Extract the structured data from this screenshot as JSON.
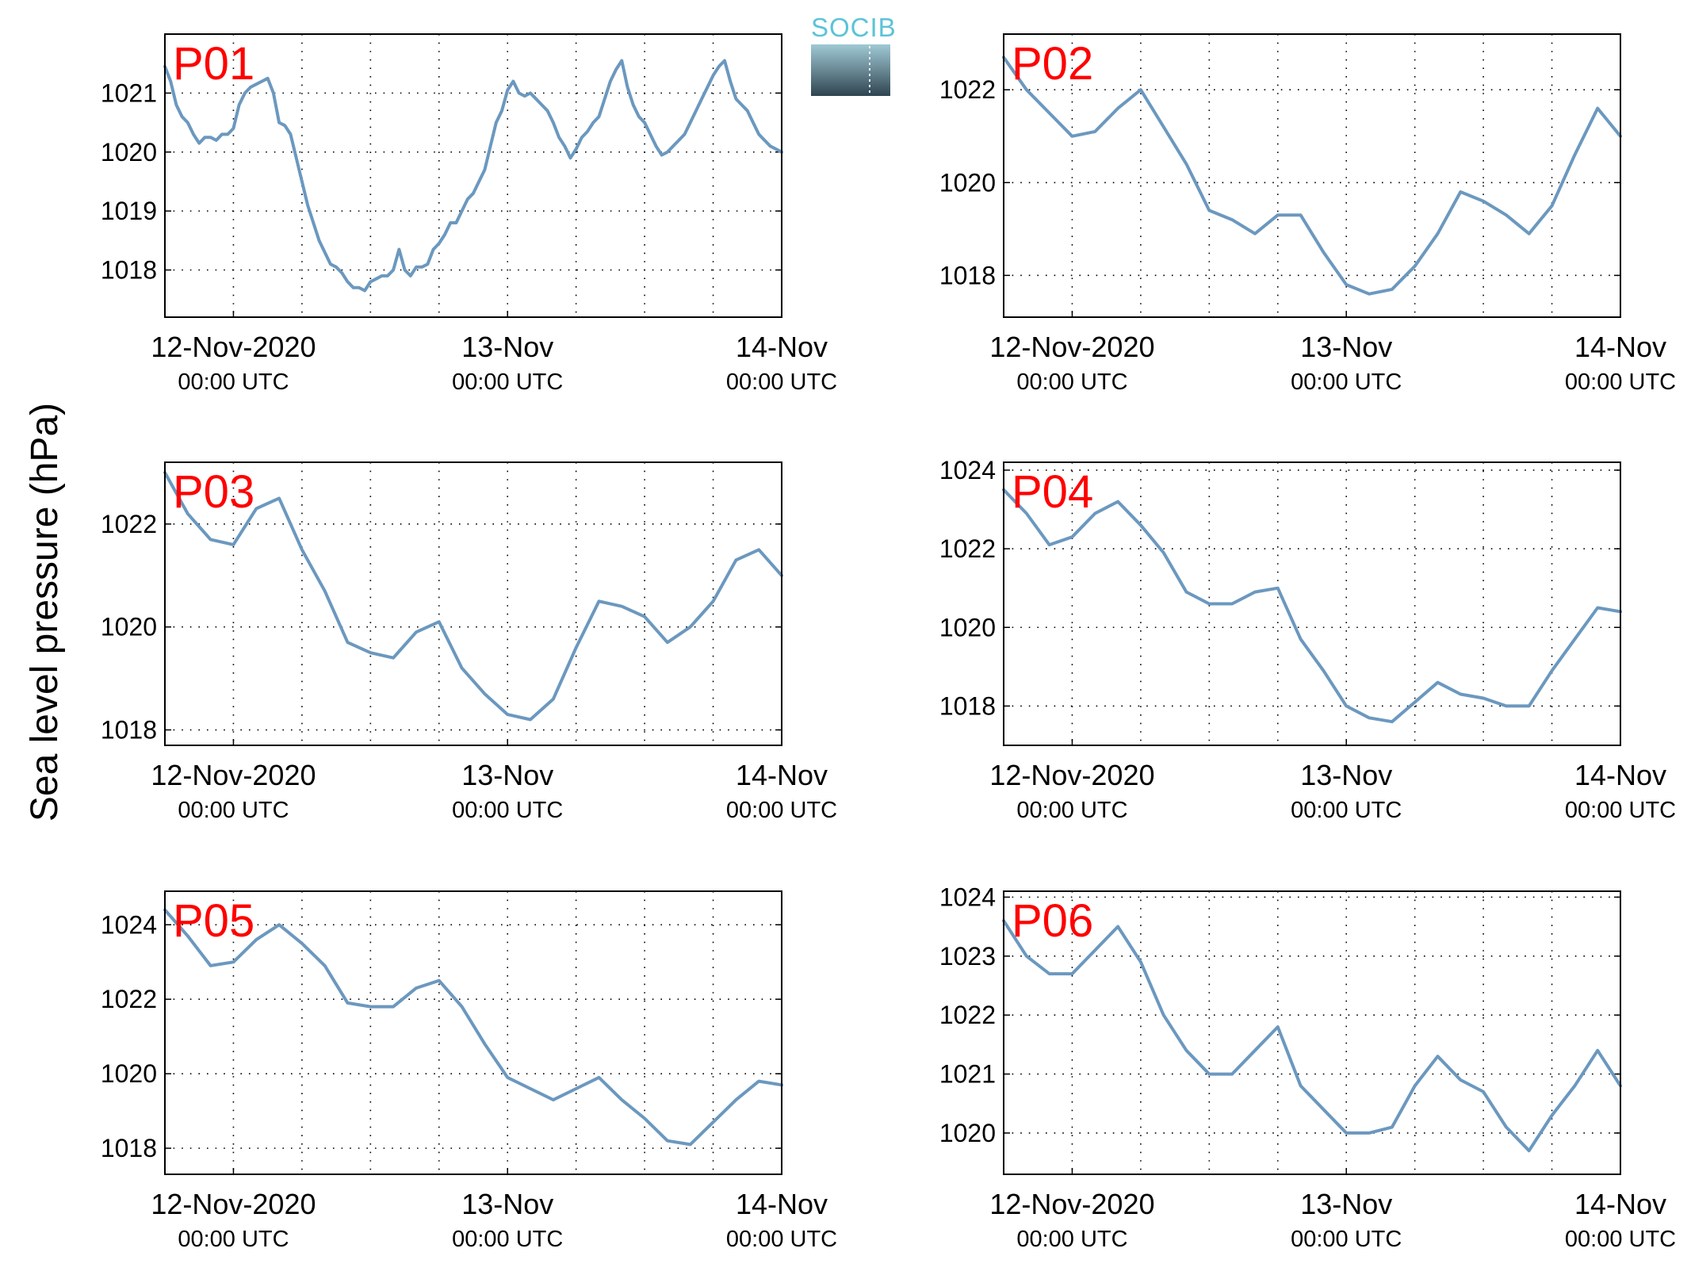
{
  "logo": {
    "text": "SOCIB",
    "colors": {
      "text": "#5bc3d8",
      "bar_top": "#9ec9d4",
      "bar_bottom": "#2f4450"
    }
  },
  "ylabel": "Sea level pressure (hPa)",
  "colors": {
    "line": "#6b98bf",
    "panel_label": "#ff0000",
    "grid": "#000000"
  },
  "x_ticks": [
    {
      "t": 0,
      "line1": "12-Nov-2020",
      "line2": "00:00 UTC"
    },
    {
      "t": 24,
      "line1": "13-Nov",
      "line2": "00:00 UTC"
    },
    {
      "t": 48,
      "line1": "14-Nov",
      "line2": "00:00 UTC"
    }
  ],
  "chart_data": [
    {
      "type": "line",
      "label": "P01",
      "xlim": [
        -6,
        48
      ],
      "ylim": [
        1017.2,
        1022.0
      ],
      "yticks": [
        1018,
        1019,
        1020,
        1021
      ],
      "x_unit": "hours since 12-Nov-2020 00:00 UTC",
      "grid": true,
      "x": [
        -6,
        -5.5,
        -5,
        -4.5,
        -4,
        -3.5,
        -3,
        -2.5,
        -2,
        -1.5,
        -1,
        -0.5,
        0,
        0.5,
        1,
        1.5,
        2,
        2.5,
        3,
        3.5,
        4,
        4.5,
        5,
        5.5,
        6,
        6.5,
        7,
        7.5,
        8,
        8.5,
        9,
        9.5,
        10,
        10.5,
        11,
        11.5,
        12,
        12.5,
        13,
        13.5,
        14,
        14.5,
        15,
        15.5,
        16,
        16.5,
        17,
        17.5,
        18,
        18.5,
        19,
        19.5,
        20,
        20.5,
        21,
        21.5,
        22,
        22.5,
        23,
        23.5,
        24,
        24.5,
        25,
        25.5,
        26,
        26.5,
        27,
        27.5,
        28,
        28.5,
        29,
        29.5,
        30,
        30.5,
        31,
        31.5,
        32,
        32.5,
        33,
        33.5,
        34,
        34.5,
        35,
        35.5,
        36,
        36.5,
        37,
        37.5,
        38,
        38.5,
        39,
        39.5,
        40,
        40.5,
        41,
        41.5,
        42,
        42.5,
        43,
        43.5,
        44,
        44.5,
        45,
        45.5,
        46,
        46.5,
        47,
        47.5,
        48
      ],
      "values": [
        1021.45,
        1021.2,
        1020.8,
        1020.6,
        1020.5,
        1020.3,
        1020.15,
        1020.25,
        1020.25,
        1020.2,
        1020.3,
        1020.3,
        1020.4,
        1020.8,
        1021.0,
        1021.1,
        1021.15,
        1021.2,
        1021.25,
        1021.0,
        1020.5,
        1020.45,
        1020.3,
        1019.9,
        1019.5,
        1019.1,
        1018.8,
        1018.5,
        1018.3,
        1018.1,
        1018.05,
        1017.95,
        1017.8,
        1017.7,
        1017.7,
        1017.65,
        1017.8,
        1017.85,
        1017.9,
        1017.9,
        1018.0,
        1018.35,
        1018.0,
        1017.9,
        1018.05,
        1018.05,
        1018.1,
        1018.35,
        1018.45,
        1018.6,
        1018.8,
        1018.8,
        1019.0,
        1019.2,
        1019.3,
        1019.5,
        1019.7,
        1020.1,
        1020.5,
        1020.7,
        1021.05,
        1021.2,
        1021.0,
        1020.95,
        1021.0,
        1020.9,
        1020.8,
        1020.7,
        1020.5,
        1020.25,
        1020.1,
        1019.9,
        1020.05,
        1020.25,
        1020.35,
        1020.5,
        1020.6,
        1020.9,
        1021.2,
        1021.4,
        1021.55,
        1021.1,
        1020.8,
        1020.6,
        1020.5,
        1020.3,
        1020.1,
        1019.95,
        1020.0,
        1020.1,
        1020.2,
        1020.3,
        1020.5,
        1020.7,
        1020.9,
        1021.1,
        1021.3,
        1021.45,
        1021.55,
        1021.2,
        1020.9,
        1020.8,
        1020.7,
        1020.5,
        1020.3,
        1020.2,
        1020.1,
        1020.05,
        1020.0
      ]
    },
    {
      "type": "line",
      "label": "P02",
      "xlim": [
        -6,
        48
      ],
      "ylim": [
        1017.1,
        1023.2
      ],
      "yticks": [
        1018,
        1020,
        1022
      ],
      "x_unit": "hours since 12-Nov-2020 00:00 UTC",
      "grid": true,
      "x": [
        -6,
        -4,
        -2,
        0,
        2,
        4,
        6,
        8,
        10,
        12,
        14,
        16,
        18,
        20,
        22,
        24,
        26,
        28,
        30,
        32,
        34,
        36,
        38,
        40,
        42,
        44,
        46,
        48
      ],
      "values": [
        1022.7,
        1022.0,
        1021.5,
        1021.0,
        1021.1,
        1021.6,
        1022.0,
        1021.2,
        1020.4,
        1019.4,
        1019.2,
        1018.9,
        1019.3,
        1019.3,
        1018.5,
        1017.8,
        1017.6,
        1017.7,
        1018.2,
        1018.9,
        1019.8,
        1019.6,
        1019.3,
        1018.9,
        1019.5,
        1020.6,
        1021.6,
        1021.0
      ]
    },
    {
      "type": "line",
      "label": "P03",
      "xlim": [
        -6,
        48
      ],
      "ylim": [
        1017.7,
        1023.2
      ],
      "yticks": [
        1018,
        1020,
        1022
      ],
      "x_unit": "hours since 12-Nov-2020 00:00 UTC",
      "grid": true,
      "x": [
        -6,
        -4,
        -2,
        0,
        2,
        4,
        6,
        8,
        10,
        12,
        14,
        16,
        18,
        20,
        22,
        24,
        26,
        28,
        30,
        32,
        34,
        36,
        38,
        40,
        42,
        44,
        46,
        48
      ],
      "values": [
        1023.0,
        1022.2,
        1021.7,
        1021.6,
        1022.3,
        1022.5,
        1021.5,
        1020.7,
        1019.7,
        1019.5,
        1019.4,
        1019.9,
        1020.1,
        1019.2,
        1018.7,
        1018.3,
        1018.2,
        1018.6,
        1019.6,
        1020.5,
        1020.4,
        1020.2,
        1019.7,
        1020.0,
        1020.5,
        1021.3,
        1021.5,
        1021.0
      ]
    },
    {
      "type": "line",
      "label": "P04",
      "xlim": [
        -6,
        48
      ],
      "ylim": [
        1017.0,
        1024.2
      ],
      "yticks": [
        1018,
        1020,
        1022,
        1024
      ],
      "x_unit": "hours since 12-Nov-2020 00:00 UTC",
      "grid": true,
      "x": [
        -6,
        -4,
        -2,
        0,
        2,
        4,
        6,
        8,
        10,
        12,
        14,
        16,
        18,
        20,
        22,
        24,
        26,
        28,
        30,
        32,
        34,
        36,
        38,
        40,
        42,
        44,
        46,
        48
      ],
      "values": [
        1023.5,
        1022.9,
        1022.1,
        1022.3,
        1022.9,
        1023.2,
        1022.6,
        1021.9,
        1020.9,
        1020.6,
        1020.6,
        1020.9,
        1021.0,
        1019.7,
        1018.9,
        1018.0,
        1017.7,
        1017.6,
        1018.1,
        1018.6,
        1018.3,
        1018.2,
        1018.0,
        1018.0,
        1018.9,
        1019.7,
        1020.5,
        1020.4
      ]
    },
    {
      "type": "line",
      "label": "P05",
      "xlim": [
        -6,
        48
      ],
      "ylim": [
        1017.3,
        1024.9
      ],
      "yticks": [
        1018,
        1020,
        1022,
        1024
      ],
      "x_unit": "hours since 12-Nov-2020 00:00 UTC",
      "grid": true,
      "x": [
        -6,
        -4,
        -2,
        0,
        2,
        4,
        6,
        8,
        10,
        12,
        14,
        16,
        18,
        20,
        22,
        24,
        26,
        28,
        30,
        32,
        34,
        36,
        38,
        40,
        42,
        44,
        46,
        48
      ],
      "values": [
        1024.4,
        1023.7,
        1022.9,
        1023.0,
        1023.6,
        1024.0,
        1023.5,
        1022.9,
        1021.9,
        1021.8,
        1021.8,
        1022.3,
        1022.5,
        1021.8,
        1020.8,
        1019.9,
        1019.6,
        1019.3,
        1019.6,
        1019.9,
        1019.3,
        1018.8,
        1018.2,
        1018.1,
        1018.7,
        1019.3,
        1019.8,
        1019.7
      ]
    },
    {
      "type": "line",
      "label": "P06",
      "xlim": [
        -6,
        48
      ],
      "ylim": [
        1019.3,
        1024.1
      ],
      "yticks": [
        1020,
        1021,
        1022,
        1023,
        1024
      ],
      "x_unit": "hours since 12-Nov-2020 00:00 UTC",
      "grid": true,
      "x": [
        -6,
        -4,
        -2,
        0,
        2,
        4,
        6,
        8,
        10,
        12,
        14,
        16,
        18,
        20,
        22,
        24,
        26,
        28,
        30,
        32,
        34,
        36,
        38,
        40,
        42,
        44,
        46,
        48
      ],
      "values": [
        1023.6,
        1023.0,
        1022.7,
        1022.7,
        1023.1,
        1023.5,
        1022.9,
        1022.0,
        1021.4,
        1021.0,
        1021.0,
        1021.4,
        1021.8,
        1020.8,
        1020.4,
        1020.0,
        1020.0,
        1020.1,
        1020.8,
        1021.3,
        1020.9,
        1020.7,
        1020.1,
        1019.7,
        1020.3,
        1020.8,
        1021.4,
        1020.8
      ]
    }
  ]
}
